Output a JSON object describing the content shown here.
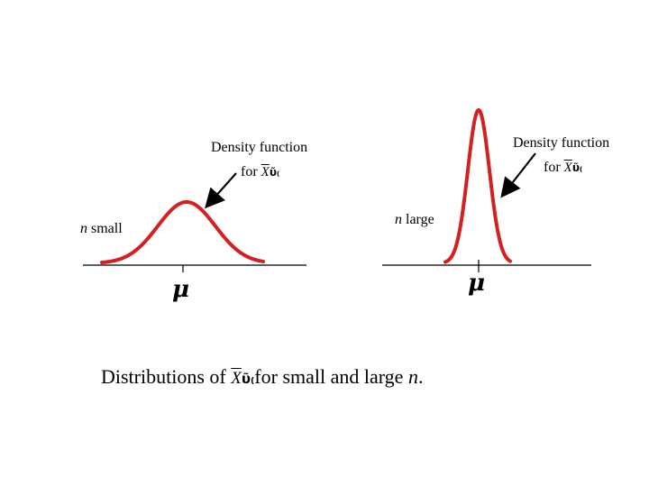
{
  "left_panel": {
    "label_line1": "Density function",
    "label_line2_prefix": "for",
    "xbar_symbol": "X",
    "glyph": "ῦ₍",
    "n_italic": "n",
    "n_text": " small",
    "mu": "μ"
  },
  "right_panel": {
    "label_line1": "Density function",
    "label_line2_prefix": "for",
    "xbar_symbol": "X",
    "glyph": "ῦ₍",
    "n_italic": "n",
    "n_text": " large",
    "mu": "μ"
  },
  "caption": {
    "prefix": "Distributions of",
    "xbar_symbol": "X",
    "glyph": "ῦ₍",
    "middle": "for small and large ",
    "n_italic": "n",
    "suffix": "."
  },
  "colors": {
    "curve": "#d42020",
    "axis": "#000000"
  }
}
